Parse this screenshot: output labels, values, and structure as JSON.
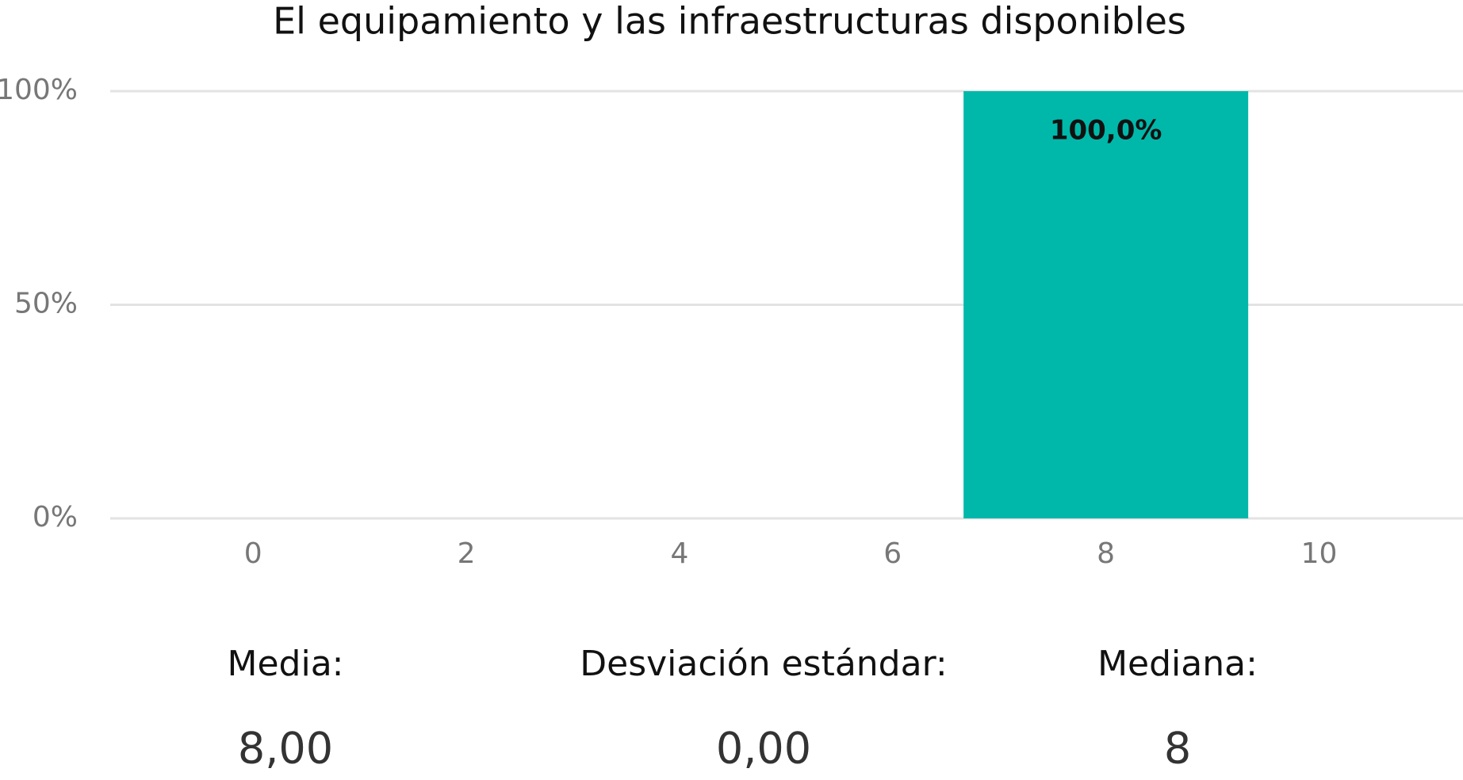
{
  "chart_data": {
    "type": "bar",
    "title": "El equipamiento y las infraestructuras disponibles",
    "x": [
      8
    ],
    "values": [
      100
    ],
    "value_labels": [
      "100,0%"
    ],
    "color": "#00b8aa",
    "xlim": [
      -1.34,
      11.35
    ],
    "xticks": [
      0,
      2,
      4,
      6,
      8,
      10
    ],
    "ylim": [
      0,
      100
    ],
    "yticks": [
      {
        "value": 0,
        "label": "0%"
      },
      {
        "value": 50,
        "label": "50%"
      },
      {
        "value": 100,
        "label": "100%"
      }
    ],
    "grid": true
  },
  "stats": [
    {
      "label": "Media:",
      "value": "8,00"
    },
    {
      "label": "Desviación estándar:",
      "value": "0,00"
    },
    {
      "label": "Mediana:",
      "value": "8"
    }
  ]
}
